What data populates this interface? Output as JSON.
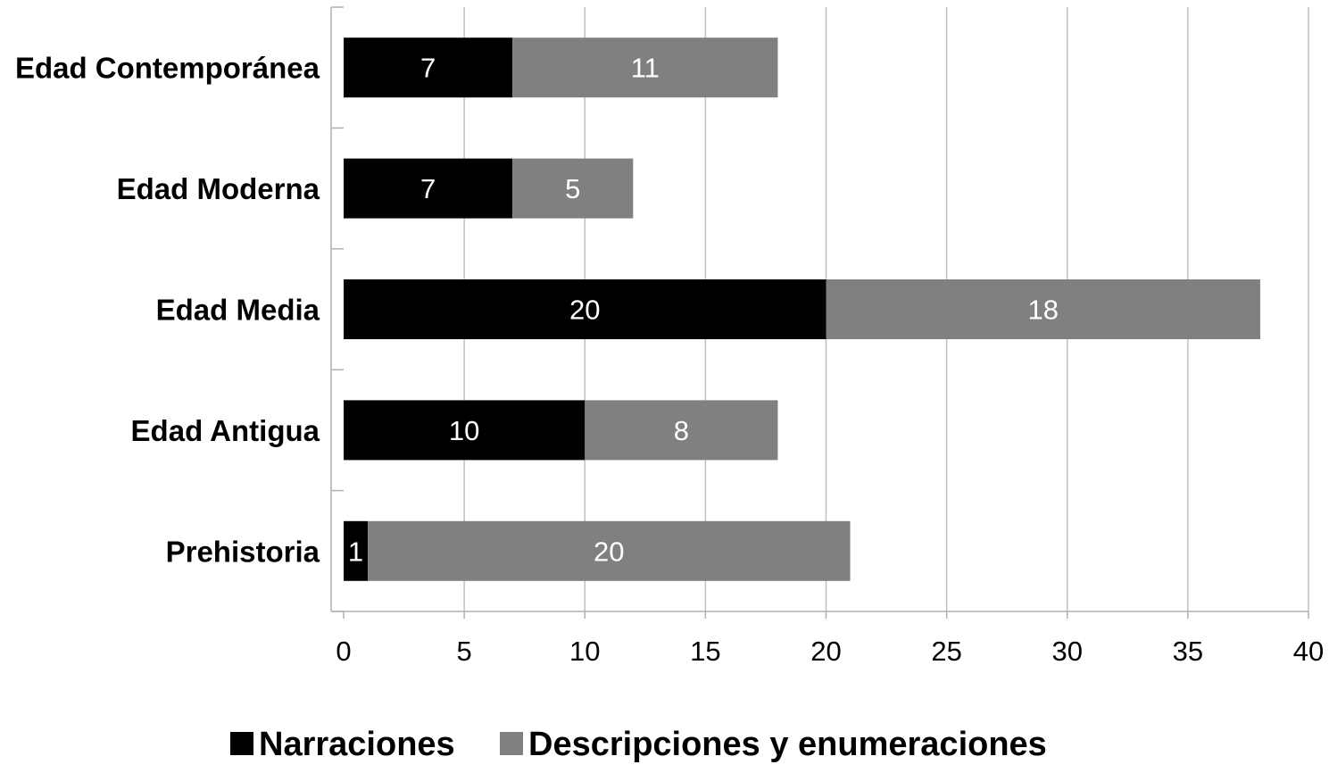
{
  "chart_data": {
    "type": "bar",
    "orientation": "horizontal",
    "stacked": true,
    "categories": [
      "Edad Contemporánea",
      "Edad Moderna",
      "Edad Media",
      "Edad Antigua",
      "Prehistoria"
    ],
    "series": [
      {
        "name": "Narraciones",
        "values": [
          7,
          7,
          20,
          10,
          1
        ],
        "color": "#000000"
      },
      {
        "name": "Descripciones y enumeraciones",
        "values": [
          11,
          5,
          18,
          8,
          20
        ],
        "color": "#808080"
      }
    ],
    "xlim": [
      0,
      40
    ],
    "xticks": [
      "0",
      "5",
      "10",
      "15",
      "20",
      "25",
      "30",
      "35",
      "40"
    ],
    "grid": "vertical",
    "legend": "bottom",
    "title": "",
    "xlabel": "",
    "ylabel": ""
  }
}
